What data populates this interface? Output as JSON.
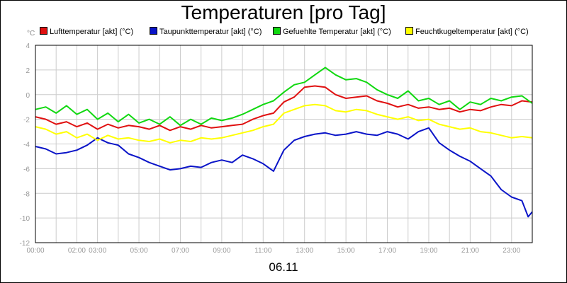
{
  "chart_data": {
    "type": "line",
    "title": "Temperaturen [pro Tag]",
    "ylabel": "°C",
    "xlabel": "06.11",
    "ylim": [
      -12,
      4
    ],
    "yticks": [
      4,
      2,
      0,
      -2,
      -4,
      -6,
      -8,
      -10,
      -12
    ],
    "xlim": [
      0,
      24
    ],
    "xticks": [
      {
        "h": 0,
        "label": "00:00"
      },
      {
        "h": 2,
        "label": "02:00"
      },
      {
        "h": 3,
        "label": "03:00"
      },
      {
        "h": 5,
        "label": "05:00"
      },
      {
        "h": 7,
        "label": "07:00"
      },
      {
        "h": 9,
        "label": "09:00"
      },
      {
        "h": 11,
        "label": "11:00"
      },
      {
        "h": 13,
        "label": "13:00"
      },
      {
        "h": 15,
        "label": "15:00"
      },
      {
        "h": 17,
        "label": "17:00"
      },
      {
        "h": 19,
        "label": "19:00"
      },
      {
        "h": 21,
        "label": "21:00"
      },
      {
        "h": 23,
        "label": "23:00"
      }
    ],
    "grid": true,
    "legend_position": "top",
    "series": [
      {
        "name": "Lufttemperatur [akt] (°C)",
        "color": "#e01010",
        "points": [
          [
            0,
            -1.8
          ],
          [
            0.5,
            -2.0
          ],
          [
            1,
            -2.4
          ],
          [
            1.5,
            -2.2
          ],
          [
            2,
            -2.6
          ],
          [
            2.5,
            -2.3
          ],
          [
            3,
            -2.8
          ],
          [
            3.5,
            -2.4
          ],
          [
            4,
            -2.7
          ],
          [
            4.5,
            -2.5
          ],
          [
            5,
            -2.6
          ],
          [
            5.5,
            -2.8
          ],
          [
            6,
            -2.5
          ],
          [
            6.5,
            -2.9
          ],
          [
            7,
            -2.6
          ],
          [
            7.5,
            -2.8
          ],
          [
            8,
            -2.5
          ],
          [
            8.5,
            -2.7
          ],
          [
            9,
            -2.6
          ],
          [
            9.5,
            -2.5
          ],
          [
            10,
            -2.4
          ],
          [
            10.5,
            -2.0
          ],
          [
            11,
            -1.7
          ],
          [
            11.5,
            -1.5
          ],
          [
            12,
            -0.6
          ],
          [
            12.5,
            -0.2
          ],
          [
            13,
            0.6
          ],
          [
            13.5,
            0.7
          ],
          [
            14,
            0.6
          ],
          [
            14.5,
            0.0
          ],
          [
            15,
            -0.3
          ],
          [
            15.5,
            -0.2
          ],
          [
            16,
            -0.1
          ],
          [
            16.5,
            -0.5
          ],
          [
            17,
            -0.7
          ],
          [
            17.5,
            -1.0
          ],
          [
            18,
            -0.8
          ],
          [
            18.5,
            -1.1
          ],
          [
            19,
            -1.0
          ],
          [
            19.5,
            -1.2
          ],
          [
            20,
            -1.1
          ],
          [
            20.5,
            -1.4
          ],
          [
            21,
            -1.2
          ],
          [
            21.5,
            -1.3
          ],
          [
            22,
            -1.0
          ],
          [
            22.5,
            -0.8
          ],
          [
            23,
            -0.9
          ],
          [
            23.5,
            -0.5
          ],
          [
            24,
            -0.6
          ]
        ]
      },
      {
        "name": "Taupunkttemperatur [akt] (°C)",
        "color": "#0a14c8",
        "points": [
          [
            0,
            -4.2
          ],
          [
            0.5,
            -4.4
          ],
          [
            1,
            -4.8
          ],
          [
            1.5,
            -4.7
          ],
          [
            2,
            -4.5
          ],
          [
            2.5,
            -4.1
          ],
          [
            3,
            -3.5
          ],
          [
            3.5,
            -3.9
          ],
          [
            4,
            -4.1
          ],
          [
            4.5,
            -4.8
          ],
          [
            5,
            -5.1
          ],
          [
            5.5,
            -5.5
          ],
          [
            6,
            -5.8
          ],
          [
            6.5,
            -6.1
          ],
          [
            7,
            -6.0
          ],
          [
            7.5,
            -5.8
          ],
          [
            8,
            -5.9
          ],
          [
            8.5,
            -5.5
          ],
          [
            9,
            -5.3
          ],
          [
            9.5,
            -5.5
          ],
          [
            10,
            -4.9
          ],
          [
            10.5,
            -5.2
          ],
          [
            11,
            -5.6
          ],
          [
            11.5,
            -6.2
          ],
          [
            12,
            -4.5
          ],
          [
            12.5,
            -3.7
          ],
          [
            13,
            -3.4
          ],
          [
            13.5,
            -3.2
          ],
          [
            14,
            -3.1
          ],
          [
            14.5,
            -3.3
          ],
          [
            15,
            -3.2
          ],
          [
            15.5,
            -3.0
          ],
          [
            16,
            -3.2
          ],
          [
            16.5,
            -3.3
          ],
          [
            17,
            -3.0
          ],
          [
            17.5,
            -3.2
          ],
          [
            18,
            -3.6
          ],
          [
            18.5,
            -3.0
          ],
          [
            19,
            -2.7
          ],
          [
            19.5,
            -3.9
          ],
          [
            20,
            -4.5
          ],
          [
            20.5,
            -5.0
          ],
          [
            21,
            -5.4
          ],
          [
            21.5,
            -6.0
          ],
          [
            22,
            -6.6
          ],
          [
            22.5,
            -7.7
          ],
          [
            23,
            -8.3
          ],
          [
            23.5,
            -8.6
          ],
          [
            23.8,
            -9.9
          ],
          [
            24,
            -9.5
          ]
        ]
      },
      {
        "name": "Gefuehlte Temperatur [akt] (°C)",
        "color": "#10d810",
        "points": [
          [
            0,
            -1.2
          ],
          [
            0.5,
            -1.0
          ],
          [
            1,
            -1.5
          ],
          [
            1.5,
            -0.9
          ],
          [
            2,
            -1.6
          ],
          [
            2.5,
            -1.2
          ],
          [
            3,
            -2.0
          ],
          [
            3.5,
            -1.5
          ],
          [
            4,
            -2.2
          ],
          [
            4.5,
            -1.6
          ],
          [
            5,
            -2.3
          ],
          [
            5.5,
            -2.0
          ],
          [
            6,
            -2.4
          ],
          [
            6.5,
            -1.8
          ],
          [
            7,
            -2.5
          ],
          [
            7.5,
            -2.0
          ],
          [
            8,
            -2.4
          ],
          [
            8.5,
            -1.9
          ],
          [
            9,
            -2.1
          ],
          [
            9.5,
            -1.9
          ],
          [
            10,
            -1.6
          ],
          [
            10.5,
            -1.2
          ],
          [
            11,
            -0.8
          ],
          [
            11.5,
            -0.5
          ],
          [
            12,
            0.2
          ],
          [
            12.5,
            0.8
          ],
          [
            13,
            1.0
          ],
          [
            13.5,
            1.6
          ],
          [
            14,
            2.2
          ],
          [
            14.5,
            1.6
          ],
          [
            15,
            1.2
          ],
          [
            15.5,
            1.3
          ],
          [
            16,
            1.0
          ],
          [
            16.5,
            0.4
          ],
          [
            17,
            0.0
          ],
          [
            17.5,
            -0.3
          ],
          [
            18,
            0.3
          ],
          [
            18.5,
            -0.5
          ],
          [
            19,
            -0.3
          ],
          [
            19.5,
            -0.8
          ],
          [
            20,
            -0.5
          ],
          [
            20.5,
            -1.2
          ],
          [
            21,
            -0.6
          ],
          [
            21.5,
            -0.8
          ],
          [
            22,
            -0.3
          ],
          [
            22.5,
            -0.5
          ],
          [
            23,
            -0.2
          ],
          [
            23.5,
            -0.1
          ],
          [
            24,
            -0.7
          ]
        ]
      },
      {
        "name": "Feuchtkugeltemperatur [akt] (°C)",
        "color": "#ffff00",
        "points": [
          [
            0,
            -2.6
          ],
          [
            0.5,
            -2.8
          ],
          [
            1,
            -3.2
          ],
          [
            1.5,
            -3.0
          ],
          [
            2,
            -3.5
          ],
          [
            2.5,
            -3.2
          ],
          [
            3,
            -3.7
          ],
          [
            3.5,
            -3.3
          ],
          [
            4,
            -3.6
          ],
          [
            4.5,
            -3.5
          ],
          [
            5,
            -3.7
          ],
          [
            5.5,
            -3.8
          ],
          [
            6,
            -3.6
          ],
          [
            6.5,
            -3.9
          ],
          [
            7,
            -3.7
          ],
          [
            7.5,
            -3.8
          ],
          [
            8,
            -3.5
          ],
          [
            8.5,
            -3.6
          ],
          [
            9,
            -3.5
          ],
          [
            9.5,
            -3.3
          ],
          [
            10,
            -3.1
          ],
          [
            10.5,
            -2.9
          ],
          [
            11,
            -2.6
          ],
          [
            11.5,
            -2.4
          ],
          [
            12,
            -1.5
          ],
          [
            12.5,
            -1.2
          ],
          [
            13,
            -0.9
          ],
          [
            13.5,
            -0.8
          ],
          [
            14,
            -0.9
          ],
          [
            14.5,
            -1.3
          ],
          [
            15,
            -1.4
          ],
          [
            15.5,
            -1.2
          ],
          [
            16,
            -1.3
          ],
          [
            16.5,
            -1.6
          ],
          [
            17,
            -1.8
          ],
          [
            17.5,
            -2.0
          ],
          [
            18,
            -1.8
          ],
          [
            18.5,
            -2.1
          ],
          [
            19,
            -2.0
          ],
          [
            19.5,
            -2.4
          ],
          [
            20,
            -2.6
          ],
          [
            20.5,
            -2.8
          ],
          [
            21,
            -2.7
          ],
          [
            21.5,
            -3.0
          ],
          [
            22,
            -3.1
          ],
          [
            22.5,
            -3.3
          ],
          [
            23,
            -3.5
          ],
          [
            23.5,
            -3.4
          ],
          [
            24,
            -3.5
          ]
        ]
      }
    ]
  }
}
